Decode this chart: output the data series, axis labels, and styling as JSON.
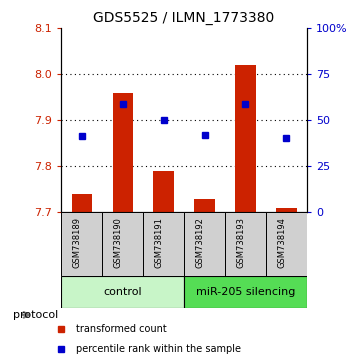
{
  "title": "GDS5525 / ILMN_1773380",
  "samples": [
    "GSM738189",
    "GSM738190",
    "GSM738191",
    "GSM738192",
    "GSM738193",
    "GSM738194"
  ],
  "red_values": [
    7.74,
    7.96,
    7.79,
    7.73,
    8.02,
    7.71
  ],
  "blue_values": [
    7.865,
    7.935,
    7.9,
    7.868,
    7.935,
    7.862
  ],
  "ylim_left": [
    7.7,
    8.1
  ],
  "ylim_right": [
    0,
    100
  ],
  "yticks_left": [
    7.7,
    7.8,
    7.9,
    8.0,
    8.1
  ],
  "yticks_right": [
    0,
    25,
    50,
    75,
    100
  ],
  "ytick_labels_right": [
    "0",
    "25",
    "50",
    "75",
    "100%"
  ],
  "group_colors": [
    "#c8f5c8",
    "#55dd55"
  ],
  "sample_box_color": "#d0d0d0",
  "bar_bottom": 7.7,
  "bar_color": "#CC2200",
  "blue_marker_color": "#0000CC",
  "legend_red_label": "transformed count",
  "legend_blue_label": "percentile rank within the sample",
  "protocol_label": "protocol",
  "tick_color_left": "#CC2200",
  "tick_color_right": "#0000CC"
}
